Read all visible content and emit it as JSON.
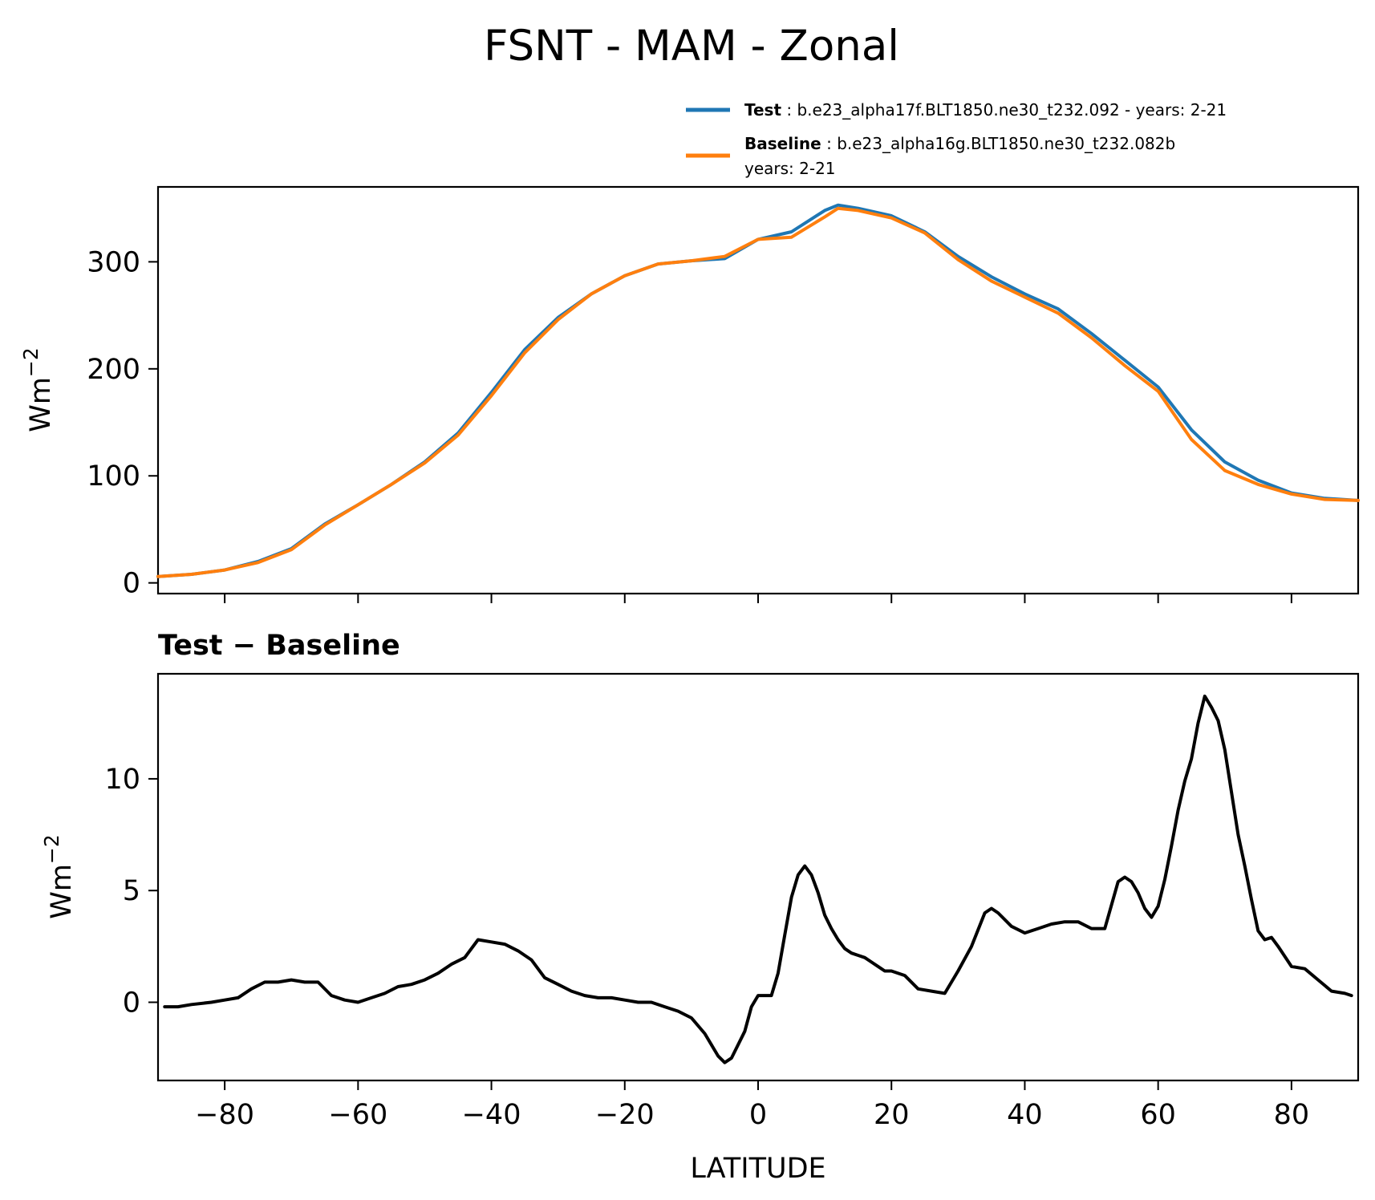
{
  "title": "FSNT - MAM - Zonal",
  "colors": {
    "test": "#1f77b4",
    "baseline": "#ff7f0e",
    "diff": "#000000",
    "axis": "#000000"
  },
  "legend": [
    {
      "key": "test",
      "name": "Test",
      "desc": ": b.e23_alpha17f.BLT1850.ne30_t232.092 - years: 2-21"
    },
    {
      "key": "baseline",
      "name": "Baseline",
      "desc": ": b.e23_alpha16g.BLT1850.ne30_t232.082b",
      "desc2": "years: 2-21"
    }
  ],
  "chart_data": [
    {
      "type": "line",
      "name": "zonal-mean",
      "xlim": [
        -90,
        90
      ],
      "ylim": [
        -10,
        370
      ],
      "yticks": [
        0,
        100,
        200,
        300
      ],
      "ylabel": "Wm",
      "ylabel_sup": "−2",
      "series": [
        {
          "name": "Test",
          "x": [
            -90,
            -85,
            -80,
            -75,
            -70,
            -65,
            -60,
            -55,
            -50,
            -45,
            -40,
            -35,
            -30,
            -25,
            -20,
            -15,
            -10,
            -5,
            0,
            5,
            10,
            12,
            15,
            20,
            25,
            30,
            35,
            40,
            45,
            50,
            55,
            60,
            65,
            70,
            75,
            80,
            85,
            90
          ],
          "values": [
            6,
            8,
            12,
            20,
            32,
            55,
            73,
            92,
            113,
            140,
            178,
            218,
            248,
            270,
            287,
            298,
            301,
            303,
            321,
            328,
            348,
            353,
            350,
            343,
            328,
            305,
            286,
            270,
            256,
            233,
            208,
            183,
            143,
            113,
            96,
            84,
            79,
            77
          ]
        },
        {
          "name": "Baseline",
          "x": [
            -90,
            -85,
            -80,
            -75,
            -70,
            -65,
            -60,
            -55,
            -50,
            -45,
            -40,
            -35,
            -30,
            -25,
            -20,
            -15,
            -10,
            -5,
            0,
            5,
            10,
            12,
            15,
            20,
            25,
            30,
            35,
            40,
            45,
            50,
            55,
            60,
            65,
            70,
            75,
            80,
            85,
            90
          ],
          "values": [
            6,
            8,
            12,
            19,
            31,
            54,
            73,
            92,
            112,
            138,
            175,
            215,
            246,
            270,
            287,
            298,
            301,
            305,
            321,
            323,
            342,
            350,
            348,
            341,
            327,
            302,
            282,
            267,
            252,
            229,
            203,
            179,
            134,
            105,
            92,
            83,
            78,
            77
          ]
        }
      ]
    },
    {
      "type": "line",
      "name": "difference",
      "title": "Test − Baseline",
      "xlim": [
        -90,
        90
      ],
      "ylim": [
        -3.5,
        14.7
      ],
      "yticks": [
        0,
        5,
        10
      ],
      "xticks": [
        -80,
        -60,
        -40,
        -20,
        0,
        20,
        40,
        60,
        80
      ],
      "xtick_labels": [
        "−80",
        "−60",
        "−40",
        "−20",
        "0",
        "20",
        "40",
        "60",
        "80"
      ],
      "xlabel": "LATITUDE",
      "ylabel": "Wm",
      "ylabel_sup": "−2",
      "series": [
        {
          "name": "Test − Baseline",
          "x": [
            -89,
            -87,
            -85,
            -82,
            -80,
            -78,
            -76,
            -74,
            -72,
            -70,
            -68,
            -66,
            -64,
            -62,
            -60,
            -58,
            -56,
            -54,
            -52,
            -50,
            -48,
            -46,
            -44,
            -42,
            -40,
            -38,
            -36,
            -34,
            -32,
            -30,
            -28,
            -26,
            -24,
            -22,
            -20,
            -18,
            -16,
            -14,
            -12,
            -10,
            -8,
            -6,
            -5,
            -4,
            -2,
            -1,
            0,
            1,
            2,
            3,
            4,
            5,
            6,
            7,
            8,
            9,
            10,
            11,
            12,
            13,
            14,
            15,
            16,
            17,
            18,
            19,
            20,
            22,
            24,
            26,
            28,
            30,
            32,
            34,
            35,
            36,
            38,
            40,
            42,
            44,
            46,
            48,
            50,
            52,
            54,
            55,
            56,
            57,
            58,
            59,
            60,
            61,
            62,
            63,
            64,
            65,
            66,
            67,
            68,
            69,
            70,
            72,
            73,
            74,
            75,
            76,
            77,
            78,
            80,
            82,
            84,
            86,
            88,
            89
          ],
          "values": [
            -0.2,
            -0.2,
            -0.1,
            0.0,
            0.1,
            0.2,
            0.6,
            0.9,
            0.9,
            1.0,
            0.9,
            0.9,
            0.3,
            0.1,
            0.0,
            0.2,
            0.4,
            0.7,
            0.8,
            1.0,
            1.3,
            1.7,
            2.0,
            2.8,
            2.7,
            2.6,
            2.3,
            1.9,
            1.1,
            0.8,
            0.5,
            0.3,
            0.2,
            0.2,
            0.1,
            0.0,
            0.0,
            -0.2,
            -0.4,
            -0.7,
            -1.4,
            -2.4,
            -2.7,
            -2.5,
            -1.3,
            -0.2,
            0.3,
            0.3,
            0.3,
            1.3,
            3.0,
            4.7,
            5.7,
            6.1,
            5.7,
            4.9,
            3.9,
            3.3,
            2.8,
            2.4,
            2.2,
            2.1,
            2.0,
            1.8,
            1.6,
            1.4,
            1.4,
            1.2,
            0.6,
            0.5,
            0.4,
            1.4,
            2.5,
            4.0,
            4.2,
            4.0,
            3.4,
            3.1,
            3.3,
            3.5,
            3.6,
            3.6,
            3.3,
            3.3,
            5.4,
            5.6,
            5.4,
            4.9,
            4.2,
            3.8,
            4.3,
            5.5,
            7.0,
            8.6,
            9.9,
            10.9,
            12.5,
            13.7,
            13.2,
            12.6,
            11.3,
            7.5,
            6.1,
            4.6,
            3.2,
            2.8,
            2.9,
            2.5,
            1.6,
            1.5,
            1.0,
            0.5,
            0.4,
            0.3
          ]
        }
      ]
    }
  ]
}
